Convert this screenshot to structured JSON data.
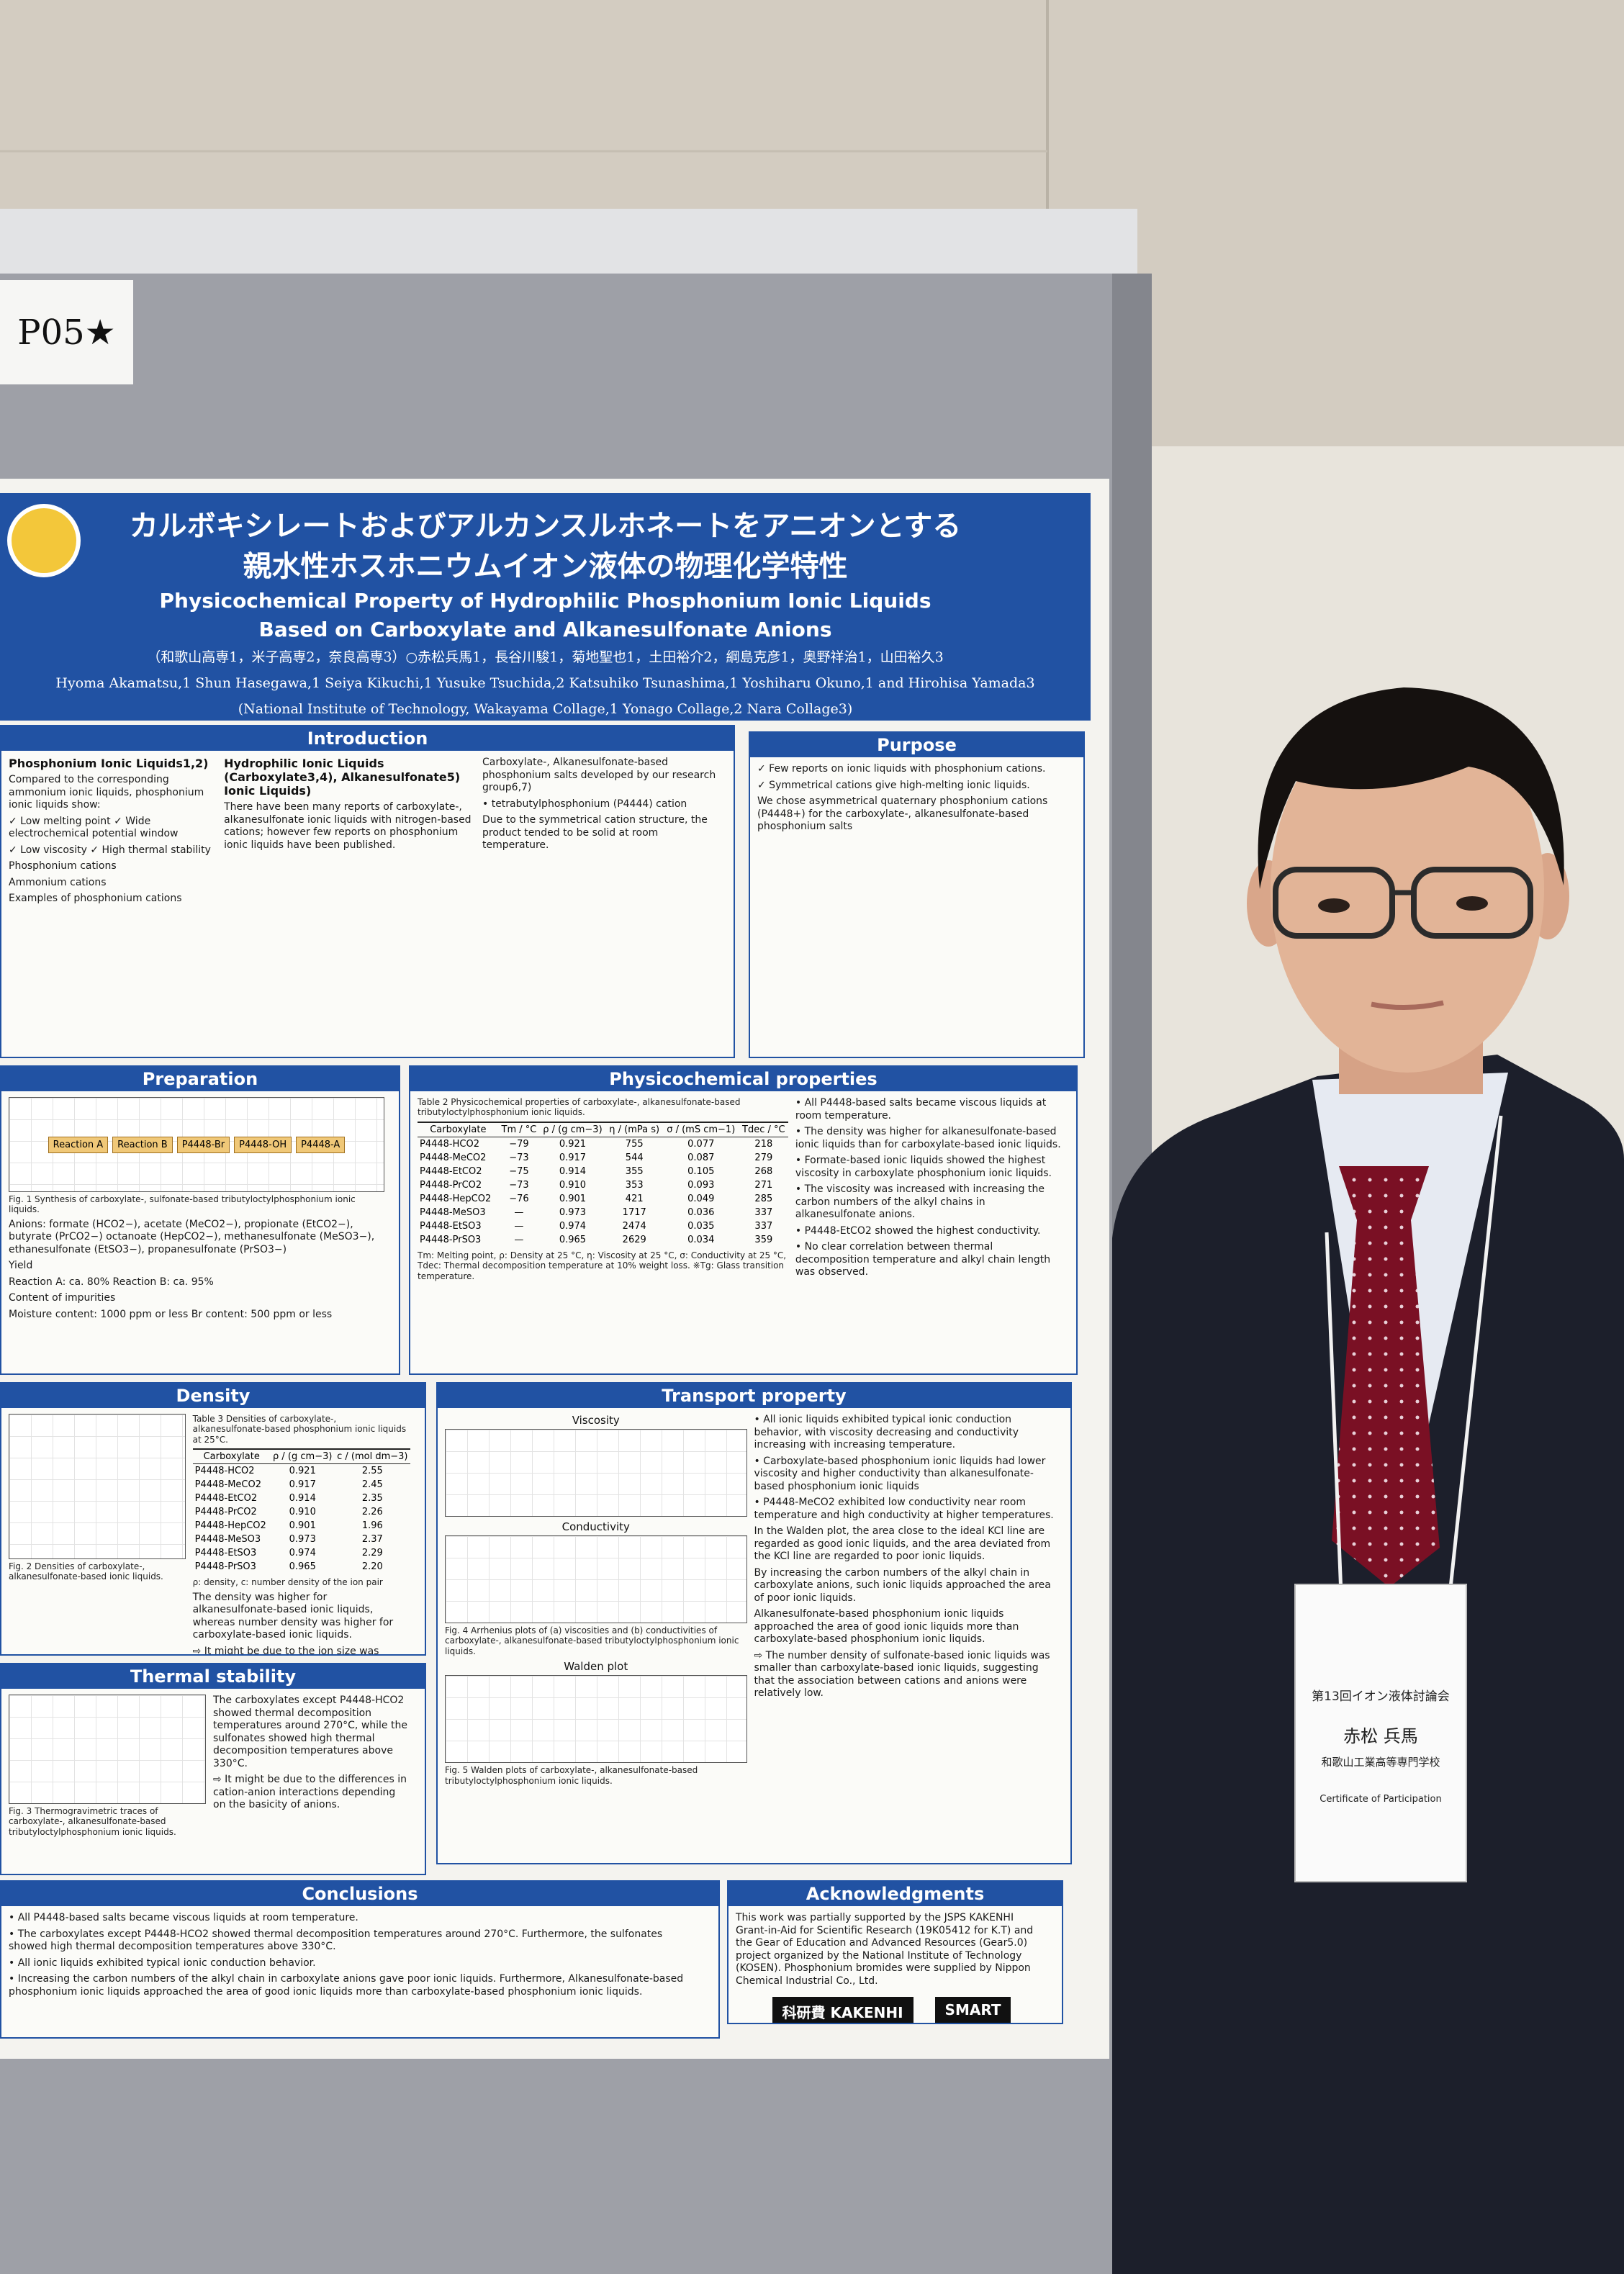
{
  "poster_id": "P05★",
  "header": {
    "title_ja": [
      "カルボキシレートおよびアルカンスルホネートをアニオンとする",
      "親水性ホスホニウムイオン液体の物理化学特性"
    ],
    "title_en": [
      "Physicochemical Property of Hydrophilic Phosphonium Ionic Liquids",
      "Based on Carboxylate and Alkanesulfonate Anions"
    ],
    "authors_ja": "（和歌山高専1，米子高専2，奈良高専3）○赤松兵馬1，長谷川駿1，菊地聖也1，土田裕介2，綱島克彦1，奥野祥治1，山田裕久3",
    "authors_en": "Hyoma Akamatsu,1 Shun Hasegawa,1 Seiya Kikuchi,1 Yusuke Tsuchida,2 Katsuhiko Tsunashima,1 Yoshiharu Okuno,1 and Hirohisa Yamada3",
    "affiliation": "(National Institute of Technology, Wakayama Collage,1 Yonago Collage,2 Nara Collage3)"
  },
  "sections": [
    {
      "heading": "Introduction",
      "columns": [
        {
          "title": "Phosphonium Ionic Liquids1,2)",
          "paragraphs": [
            "Compared to the corresponding ammonium ionic liquids, phosphonium ionic liquids show:",
            "✓ Low melting point   ✓ Wide electrochemical potential window",
            "✓ Low viscosity   ✓ High thermal stability",
            "Phosphonium cations",
            "Ammonium cations",
            "Examples of phosphonium cations"
          ]
        },
        {
          "title": "Hydrophilic Ionic Liquids (Carboxylate3,4), Alkanesulfonate5) Ionic Liquids)",
          "paragraphs": [
            "There have been many reports of carboxylate-, alkanesulfonate ionic liquids with nitrogen-based cations; however few reports on phosphonium ionic liquids have been published."
          ]
        },
        {
          "paragraphs": [
            "Carboxylate-, Alkanesulfonate-based phosphonium salts developed by our research group6,7)",
            "• tetrabutylphosphonium (P4444) cation",
            "Due to the symmetrical cation structure, the product tended to be solid at room temperature."
          ]
        }
      ]
    },
    {
      "heading": "Purpose",
      "columns": [
        {
          "paragraphs": [
            "✓ Few reports on ionic liquids with phosphonium cations.",
            "✓ Symmetrical cations give high-melting ionic liquids.",
            "We chose asymmetrical quaternary phosphonium cations (P4448+) for the carboxylate-, alkanesulfonate-based phosphonium salts"
          ]
        }
      ]
    },
    {
      "heading": "Preparation",
      "columns": [
        {
          "figures": [
            {
              "labels": [
                "Reaction A",
                "Reaction B",
                "P4448-Br",
                "P4448-OH",
                "P4448-A"
              ],
              "caption": "Fig. 1 Synthesis of carboxylate-, sulfonate-based tributyloctylphosphonium ionic liquids."
            }
          ],
          "paragraphs": [
            "Anions: formate (HCO2−), acetate (MeCO2−), propionate (EtCO2−), butyrate (PrCO2−) octanoate (HepCO2−), methanesulfonate (MeSO3−), ethanesulfonate (EtSO3−), propanesulfonate (PrSO3−)",
            "Yield",
            "Reaction A: ca. 80%   Reaction B: ca. 95%",
            "Content of impurities",
            "Moisture content: 1000 ppm or less   Br content: 500 ppm or less"
          ]
        }
      ]
    },
    {
      "heading": "Physicochemical properties",
      "columns": [
        {
          "table": {
            "caption": "Table 2 Physicochemical properties of carboxylate-, alkanesulfonate-based tributyloctylphosphonium ionic liquids.",
            "columns": [
              "Carboxylate",
              "Tm / °C",
              "ρ / (g cm−3)",
              "η / (mPa s)",
              "σ / (mS cm−1)",
              "Tdec / °C"
            ],
            "rows": [
              [
                "P4448-HCO2",
                "−79",
                "0.921",
                "755",
                "0.077",
                "218"
              ],
              [
                "P4448-MeCO2",
                "−73",
                "0.917",
                "544",
                "0.087",
                "279"
              ],
              [
                "P4448-EtCO2",
                "−75",
                "0.914",
                "355",
                "0.105",
                "268"
              ],
              [
                "P4448-PrCO2",
                "−73",
                "0.910",
                "353",
                "0.093",
                "271"
              ],
              [
                "P4448-HepCO2",
                "−76",
                "0.901",
                "421",
                "0.049",
                "285"
              ],
              [
                "P4448-MeSO3",
                "—",
                "0.973",
                "1717",
                "0.036",
                "337"
              ],
              [
                "P4448-EtSO3",
                "—",
                "0.974",
                "2474",
                "0.035",
                "337"
              ],
              [
                "P4448-PrSO3",
                "—",
                "0.965",
                "2629",
                "0.034",
                "359"
              ]
            ],
            "note": "Tm: Melting point, ρ: Density at 25 °C, η: Viscosity at 25 °C, σ: Conductivity at 25 °C, Tdec: Thermal decomposition temperature at 10% weight loss. ※Tg: Glass transition temperature."
          }
        },
        {
          "paragraphs": [
            "• All P4448-based salts became viscous liquids at room temperature.",
            "• The density was higher for alkanesulfonate-based ionic liquids than for carboxylate-based ionic liquids.",
            "• Formate-based ionic liquids showed the highest viscosity in carboxylate phosphonium ionic liquids.",
            "• The viscosity was increased with increasing the carbon numbers of the alkyl chains in alkanesulfonate anions.",
            "• P4448-EtCO2 showed the highest conductivity.",
            "• No clear correlation between thermal decomposition temperature and alkyl chain length was observed."
          ]
        }
      ]
    },
    {
      "heading": "Density",
      "columns": [
        {
          "figures": [
            {
              "caption": "Fig. 2 Densities of carboxylate-, alkanesulfonate-based ionic liquids."
            }
          ]
        },
        {
          "table": {
            "caption": "Table 3 Densities of carboxylate-, alkanesulfonate-based phosphonium ionic liquids at 25°C.",
            "columns": [
              "Carboxylate",
              "ρ / (g cm−3)",
              "c / (mol dm−3)"
            ],
            "rows": [
              [
                "P4448-HCO2",
                "0.921",
                "2.55"
              ],
              [
                "P4448-MeCO2",
                "0.917",
                "2.45"
              ],
              [
                "P4448-EtCO2",
                "0.914",
                "2.35"
              ],
              [
                "P4448-PrCO2",
                "0.910",
                "2.26"
              ],
              [
                "P4448-HepCO2",
                "0.901",
                "1.96"
              ],
              [
                "P4448-MeSO3",
                "0.973",
                "2.37"
              ],
              [
                "P4448-EtSO3",
                "0.974",
                "2.29"
              ],
              [
                "P4448-PrSO3",
                "0.965",
                "2.20"
              ]
            ],
            "note": "ρ: density, c: number density of the ion pair"
          },
          "paragraphs": [
            "The density was higher for alkanesulfonate-based ionic liquids, whereas number density was higher for carboxylate-based ionic liquids.",
            "⇨ It might be due to the ion size was smaller for carboxylate anion."
          ]
        }
      ]
    },
    {
      "heading": "Transport property",
      "columns": [
        {
          "figures": [
            {
              "title": "Viscosity"
            },
            {
              "title": "Conductivity",
              "caption": "Fig. 4 Arrhenius plots of (a) viscosities and (b) conductivities of carboxylate-, alkanesulfonate-based tributyloctylphosphonium ionic liquids."
            },
            {
              "title": "Walden plot",
              "caption": "Fig. 5 Walden plots of carboxylate-, alkanesulfonate-based tributyloctylphosphonium ionic liquids."
            }
          ]
        },
        {
          "paragraphs": [
            "• All ionic liquids exhibited typical ionic conduction behavior, with viscosity decreasing and conductivity increasing with increasing temperature.",
            "• Carboxylate-based phosphonium ionic liquids had lower viscosity and higher conductivity than alkanesulfonate-based phosphonium ionic liquids",
            "• P4448-MeCO2 exhibited low conductivity near room temperature and high conductivity at higher temperatures.",
            "In the Walden plot, the area close to the ideal KCl line are regarded as good ionic liquids, and the area deviated from the KCl line are regarded to poor ionic liquids.",
            "By increasing the carbon numbers of the alkyl chain in carboxylate anions, such ionic liquids approached the area of poor ionic liquids.",
            "Alkanesulfonate-based phosphonium ionic liquids approached the area of good ionic liquids more than carboxylate-based phosphonium ionic liquids.",
            "⇨ The number density of sulfonate-based ionic liquids was smaller than carboxylate-based ionic liquids, suggesting that the association between cations and anions were relatively low."
          ]
        }
      ]
    },
    {
      "heading": "Thermal stability",
      "columns": [
        {
          "figures": [
            {
              "caption": "Fig. 3 Thermogravimetric traces of carboxylate-, alkanesulfonate-based tributyloctylphosphonium ionic liquids."
            }
          ]
        },
        {
          "paragraphs": [
            "The carboxylates except P4448-HCO2 showed thermal decomposition temperatures around 270°C, while the sulfonates showed high thermal decomposition temperatures above 330°C.",
            "⇨ It might be due to the differences in cation-anion interactions depending on the basicity of anions."
          ]
        }
      ]
    },
    {
      "heading": "Conclusions",
      "columns": [
        {
          "paragraphs": [
            "• All P4448-based salts became viscous liquids at room temperature.",
            "• The carboxylates except P4448-HCO2 showed thermal decomposition temperatures around 270°C. Furthermore, the sulfonates showed high thermal decomposition temperatures above 330°C.",
            "• All ionic liquids exhibited typical ionic conduction behavior.",
            "• Increasing the carbon numbers of the alkyl chain in carboxylate anions gave poor ionic liquids. Furthermore, Alkanesulfonate-based phosphonium ionic liquids approached the area of good ionic liquids more than carboxylate-based phosphonium ionic liquids."
          ]
        }
      ]
    },
    {
      "heading": "Acknowledgments",
      "columns": [
        {
          "paragraphs": [
            "This work was partially supported by the JSPS KAKENHI Grant-in-Aid for Scientific Research (19K05412 for K.T) and the Gear of Education and Advanced Resources (Gear5.0) project organized by the National Institute of Technology (KOSEN). Phosphonium bromides were supplied by Nippon Chemical Industrial Co., Ltd."
          ],
          "logos": [
            "科研費 KAKENHI",
            "SMART"
          ]
        }
      ]
    }
  ],
  "badge": {
    "event": "第13回イオン液体討論会",
    "name": "赤松 兵馬",
    "school": "和歌山工業高等専門学校",
    "certificate": "Certificate of Participation"
  }
}
